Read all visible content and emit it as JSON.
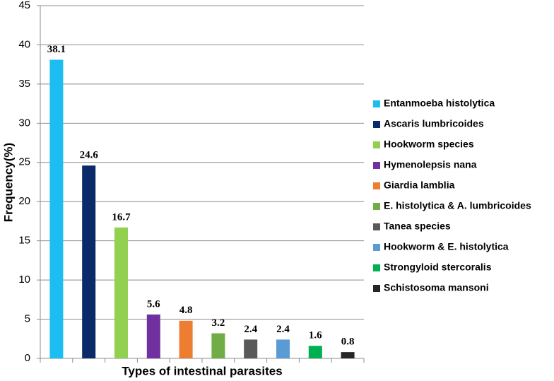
{
  "chart_data": {
    "type": "bar",
    "y_label": "Frequency(%)",
    "x_label": "Types of intestinal parasites",
    "categories": [
      "Entanmoeba histolytica",
      "Ascaris lumbricoides",
      "Hookworm species",
      "Hymenolepsis nana",
      "Giardia lamblia",
      "E. histolytica & A. lumbricoides",
      "Tanea species",
      "Hookworm & E. histolytica",
      "Strongyloid stercoralis",
      "Schistosoma mansoni"
    ],
    "values": [
      38.1,
      24.6,
      16.7,
      5.6,
      4.8,
      3.2,
      2.4,
      2.4,
      1.6,
      0.8
    ],
    "colors": [
      "#1bbdf2",
      "#0b2a6a",
      "#92d050",
      "#7030a0",
      "#ed7d31",
      "#70ad47",
      "#595959",
      "#5b9bd5",
      "#00b050",
      "#262626"
    ],
    "ylim": [
      0,
      45
    ],
    "yticks": [
      0,
      5,
      10,
      15,
      20,
      25,
      30,
      35,
      40,
      45
    ],
    "grid": true,
    "legend": "right"
  }
}
